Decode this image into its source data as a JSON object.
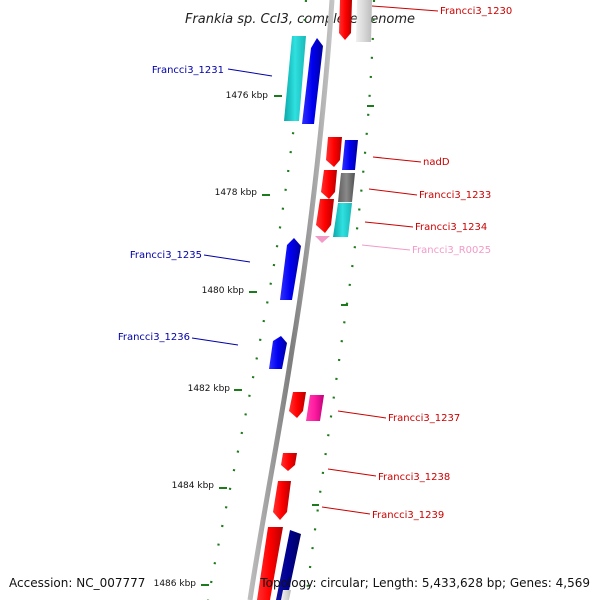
{
  "title": "Frankia sp. CcI3, complete genome",
  "accession": "Accession: NC_007777",
  "topology": "Topology: circular; Length: 5,433,628 bp; Genes: 4,569",
  "colors": {
    "backbone": "#8a8a8a",
    "tick": "#1d7a1d",
    "forward_gene": "#0000ee",
    "reverse_gene": "#ee0000",
    "cyan_gene": "#1ec8c8",
    "gray_gene": "#7a7a7a",
    "pink_gene": "#ff1aa0",
    "navy_gene": "#000090",
    "light_pink_label": "#f29ac8"
  },
  "ticks": [
    {
      "label": "1476 kbp"
    },
    {
      "label": "1478 kbp"
    },
    {
      "label": "1480 kbp"
    },
    {
      "label": "1482 kbp"
    },
    {
      "label": "1484 kbp"
    },
    {
      "label": "1486 kbp"
    }
  ],
  "gene_labels": [
    {
      "text": "Francci3_1230",
      "color": "#cc0000"
    },
    {
      "text": "Francci3_1231",
      "color": "#0000aa"
    },
    {
      "text": "nadD",
      "color": "#cc0000"
    },
    {
      "text": "Francci3_1233",
      "color": "#cc0000"
    },
    {
      "text": "Francci3_1234",
      "color": "#cc0000"
    },
    {
      "text": "Francci3_1235",
      "color": "#0000aa"
    },
    {
      "text": "Francci3_R0025",
      "color": "#f29ac8"
    },
    {
      "text": "Francci3_1236",
      "color": "#0000aa"
    },
    {
      "text": "Francci3_1237",
      "color": "#cc0000"
    },
    {
      "text": "Francci3_1238",
      "color": "#cc0000"
    },
    {
      "text": "Francci3_1239",
      "color": "#cc0000"
    }
  ]
}
